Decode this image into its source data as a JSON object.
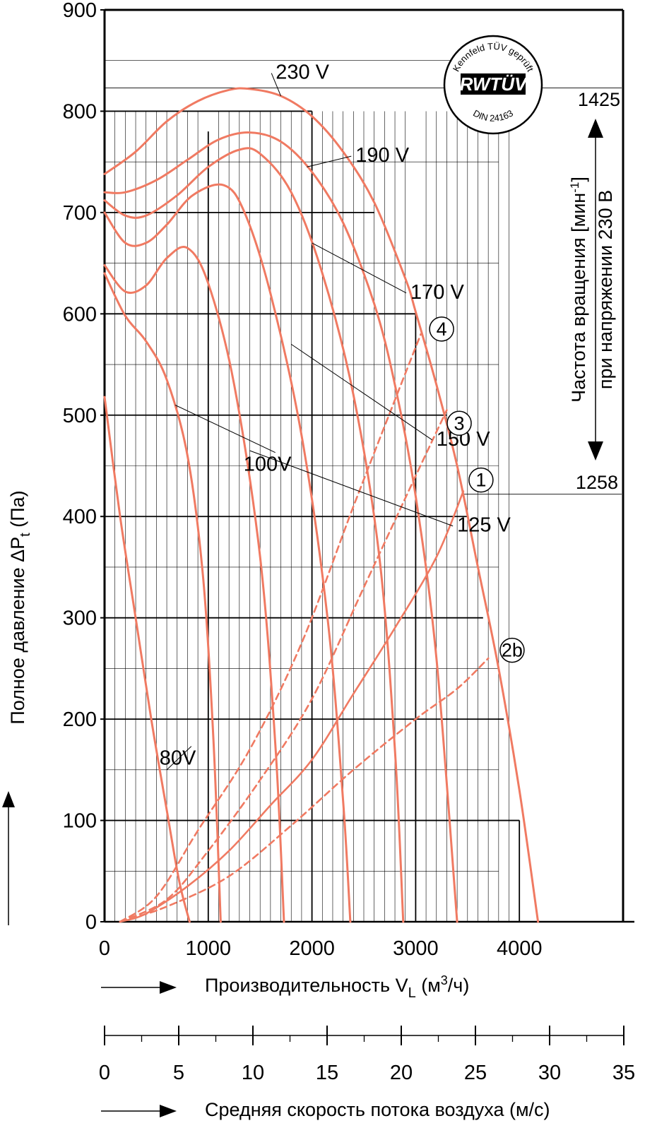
{
  "chart_data": {
    "type": "line",
    "title": "",
    "xlabel": "Производительность V",
    "xlabel_sub": "L",
    "xlabel_unit_pre": " (м",
    "xlabel_unit_sup": "3",
    "xlabel_unit_post": "/ч)",
    "ylabel": "Полное давление ΔP",
    "ylabel_sub": "t",
    "ylabel_unit": " (Па)",
    "xlim": [
      0,
      5000
    ],
    "ylim": [
      0,
      900
    ],
    "x_ticks": [
      0,
      1000,
      2000,
      3000,
      4000
    ],
    "y_ticks": [
      0,
      100,
      200,
      300,
      400,
      500,
      600,
      700,
      800,
      900
    ],
    "velocity_axis": {
      "label": "Средняя скорость потока воздуха (м/с)",
      "ticks": [
        0,
        5,
        10,
        15,
        20,
        25,
        30,
        35
      ]
    },
    "rpm_axis": {
      "label_line1": "Частота вращения [мин",
      "label_sup": "-1",
      "label_line1_end": "]",
      "label_line2": "при напряжении 230 В",
      "top_value": "1425",
      "bottom_value": "1258",
      "top_pressure": 823,
      "bottom_pressure": 422
    },
    "grid": true,
    "series": [
      {
        "name": "230 V",
        "kind": "fan",
        "points": [
          [
            0,
            738
          ],
          [
            300,
            760
          ],
          [
            600,
            790
          ],
          [
            900,
            810
          ],
          [
            1200,
            821
          ],
          [
            1400,
            822
          ],
          [
            1700,
            815
          ],
          [
            2000,
            795
          ],
          [
            2300,
            760
          ],
          [
            2600,
            710
          ],
          [
            2900,
            635
          ],
          [
            3000,
            602
          ],
          [
            3200,
            530
          ],
          [
            3400,
            450
          ],
          [
            3600,
            350
          ],
          [
            3800,
            250
          ],
          [
            4000,
            130
          ],
          [
            4180,
            0
          ]
        ]
      },
      {
        "name": "190 V",
        "kind": "fan",
        "points": [
          [
            0,
            720
          ],
          [
            200,
            720
          ],
          [
            500,
            732
          ],
          [
            800,
            752
          ],
          [
            1100,
            772
          ],
          [
            1400,
            779
          ],
          [
            1700,
            770
          ],
          [
            2000,
            740
          ],
          [
            2300,
            690
          ],
          [
            2600,
            610
          ],
          [
            2800,
            530
          ],
          [
            3000,
            420
          ],
          [
            3200,
            260
          ],
          [
            3400,
            0
          ]
        ]
      },
      {
        "name": "170 V",
        "kind": "fan",
        "points": [
          [
            0,
            712
          ],
          [
            200,
            697
          ],
          [
            400,
            697
          ],
          [
            700,
            717
          ],
          [
            1000,
            745
          ],
          [
            1300,
            762
          ],
          [
            1500,
            758
          ],
          [
            1800,
            720
          ],
          [
            2100,
            640
          ],
          [
            2400,
            520
          ],
          [
            2650,
            360
          ],
          [
            2800,
            170
          ],
          [
            2880,
            0
          ]
        ]
      },
      {
        "name": "150 V",
        "kind": "fan",
        "points": [
          [
            0,
            700
          ],
          [
            200,
            670
          ],
          [
            400,
            670
          ],
          [
            600,
            688
          ],
          [
            850,
            717
          ],
          [
            1150,
            727
          ],
          [
            1350,
            700
          ],
          [
            1600,
            620
          ],
          [
            1900,
            480
          ],
          [
            2150,
            300
          ],
          [
            2300,
            120
          ],
          [
            2370,
            0
          ]
        ]
      },
      {
        "name": "125 V",
        "kind": "fan",
        "points": [
          [
            0,
            648
          ],
          [
            200,
            622
          ],
          [
            400,
            628
          ],
          [
            600,
            655
          ],
          [
            800,
            665
          ],
          [
            1000,
            630
          ],
          [
            1250,
            530
          ],
          [
            1500,
            360
          ],
          [
            1650,
            170
          ],
          [
            1730,
            0
          ]
        ]
      },
      {
        "name": "100V",
        "kind": "fan",
        "points": [
          [
            0,
            640
          ],
          [
            200,
            598
          ],
          [
            400,
            573
          ],
          [
            600,
            535
          ],
          [
            800,
            460
          ],
          [
            950,
            340
          ],
          [
            1050,
            180
          ],
          [
            1120,
            0
          ]
        ]
      },
      {
        "name": "80V",
        "kind": "fan",
        "points": [
          [
            0,
            518
          ],
          [
            150,
            400
          ],
          [
            300,
            300
          ],
          [
            450,
            200
          ],
          [
            600,
            110
          ],
          [
            720,
            40
          ],
          [
            820,
            0
          ]
        ]
      },
      {
        "name": "1",
        "kind": "system",
        "points": [
          [
            150,
            0
          ],
          [
            400,
            8
          ],
          [
            800,
            35
          ],
          [
            1200,
            70
          ],
          [
            1600,
            115
          ],
          [
            2000,
            160
          ],
          [
            2400,
            225
          ],
          [
            2800,
            290
          ],
          [
            3200,
            360
          ],
          [
            3460,
            425
          ]
        ]
      },
      {
        "name": "2b",
        "kind": "system-dashed",
        "points": [
          [
            150,
            0
          ],
          [
            600,
            15
          ],
          [
            1200,
            45
          ],
          [
            1800,
            95
          ],
          [
            2400,
            150
          ],
          [
            3000,
            200
          ],
          [
            3400,
            230
          ],
          [
            3700,
            260
          ]
        ]
      },
      {
        "name": "3",
        "kind": "system-dashed",
        "points": [
          [
            150,
            0
          ],
          [
            600,
            22
          ],
          [
            1000,
            70
          ],
          [
            1500,
            140
          ],
          [
            2000,
            220
          ],
          [
            2500,
            330
          ],
          [
            3000,
            440
          ],
          [
            3300,
            505
          ]
        ]
      },
      {
        "name": "4",
        "kind": "system-dashed",
        "points": [
          [
            150,
            0
          ],
          [
            500,
            25
          ],
          [
            900,
            90
          ],
          [
            1400,
            170
          ],
          [
            1900,
            275
          ],
          [
            2400,
            410
          ],
          [
            2800,
            515
          ],
          [
            3050,
            580
          ]
        ]
      }
    ],
    "curve_labels": [
      {
        "series": "230 V",
        "text": "230 V",
        "x": 1650,
        "y": 832
      },
      {
        "series": "190 V",
        "text": "190 V",
        "x": 2420,
        "y": 750
      },
      {
        "series": "170 V",
        "text": "170 V",
        "x": 2950,
        "y": 615
      },
      {
        "series": "150 V",
        "text": "150 V",
        "x": 3200,
        "y": 470
      },
      {
        "series": "125 V",
        "text": "125 V",
        "x": 3400,
        "y": 385
      },
      {
        "series": "100V",
        "text": "100V",
        "x": 1340,
        "y": 445
      },
      {
        "series": "80V",
        "text": "80V",
        "x": 530,
        "y": 155
      }
    ],
    "circle_labels": [
      {
        "text": "4",
        "x": 3250,
        "y": 585
      },
      {
        "text": "3",
        "x": 3420,
        "y": 492
      },
      {
        "text": "1",
        "x": 3630,
        "y": 436
      },
      {
        "text": "2b",
        "x": 3930,
        "y": 268
      }
    ]
  },
  "seal": {
    "top_text": "Kennfeld TÜV geprüft",
    "brand": "RWTÜV",
    "bottom_text": "DIN 24163"
  },
  "colors": {
    "curve": "#f07a62",
    "grid": "#000000",
    "text": "#000000"
  }
}
